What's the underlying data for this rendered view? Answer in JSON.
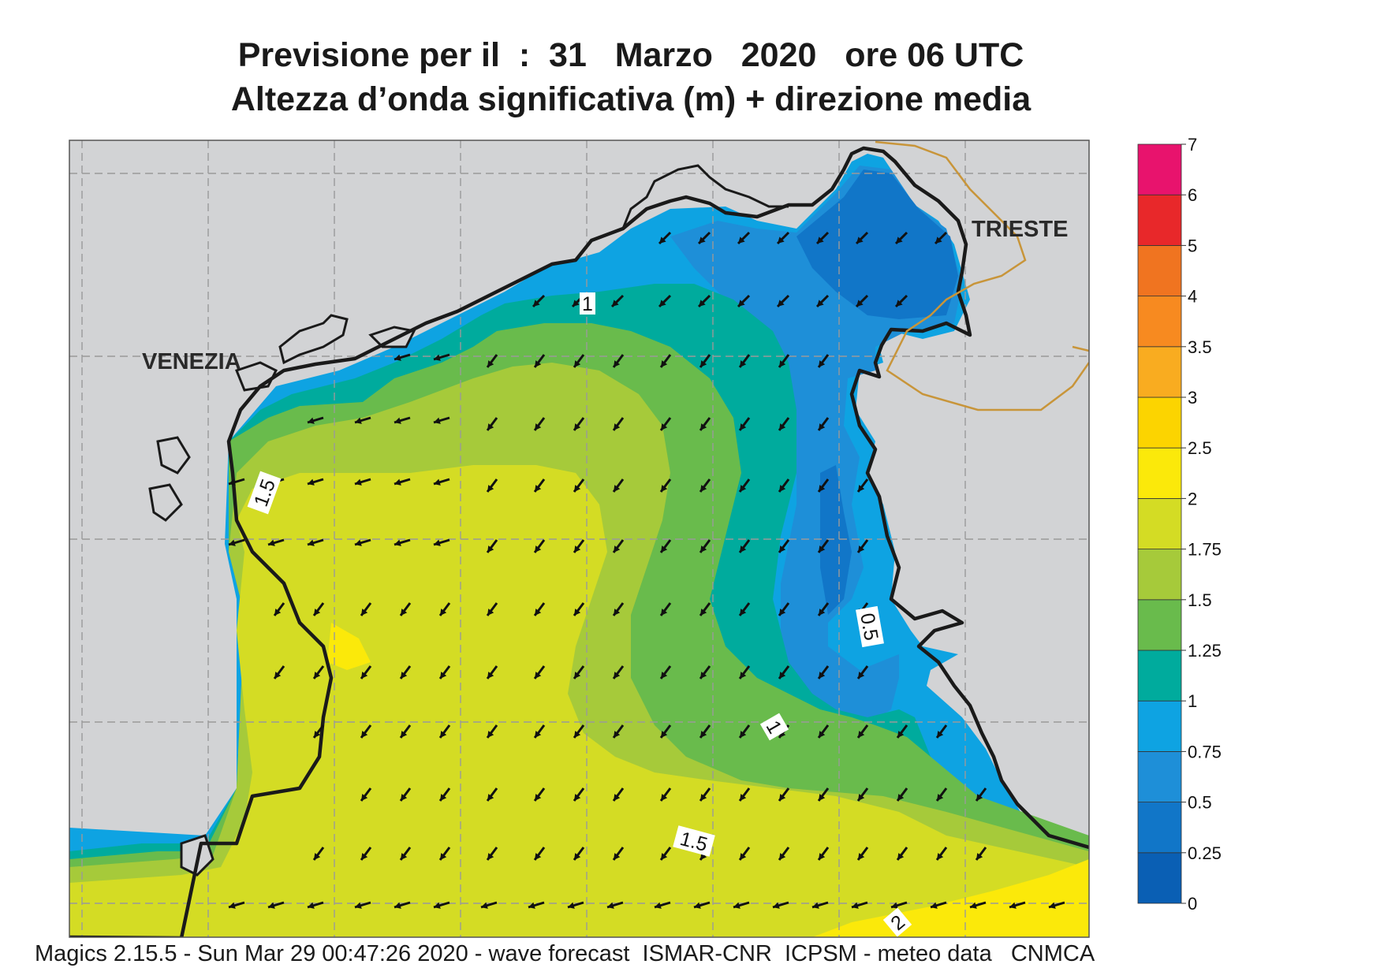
{
  "title": {
    "line1": "Previsione per il  :  31   Marzo   2020   ore 06 UTC",
    "line2": "Altezza d’onda significativa (m) + direzione media"
  },
  "footer": "Magics 2.15.5 - Sun Mar 29 00:47:26 2020 - wave forecast  ISMAR-CNR  ICPSM - meteo data   CNMCA",
  "places": {
    "venezia": "VENEZIA",
    "trieste": "TRIESTE"
  },
  "contour_labels": [
    "1",
    "1.5",
    "0.5",
    "1",
    "1.5",
    "2"
  ],
  "legend": {
    "ticks": [
      "0",
      "0.25",
      "0.5",
      "0.75",
      "1",
      "1.25",
      "1.5",
      "1.75",
      "2",
      "2.5",
      "3",
      "3.5",
      "4",
      "5",
      "6",
      "7"
    ],
    "colors": [
      "#0a5fb4",
      "#1176c8",
      "#1e8fd8",
      "#0ea3e2",
      "#00ab9d",
      "#69bb4c",
      "#a6ca3a",
      "#d4dc24",
      "#fbe90a",
      "#fcd400",
      "#f9ac20",
      "#f78a20",
      "#f07420",
      "#e8282a",
      "#e8136d"
    ]
  },
  "colors": {
    "land": "#d2d3d5",
    "coast": "#1a1a1a",
    "border": "#c8953a",
    "grid": "#999999"
  },
  "icons": {
    "arrow": "wave-direction-arrow-icon"
  }
}
